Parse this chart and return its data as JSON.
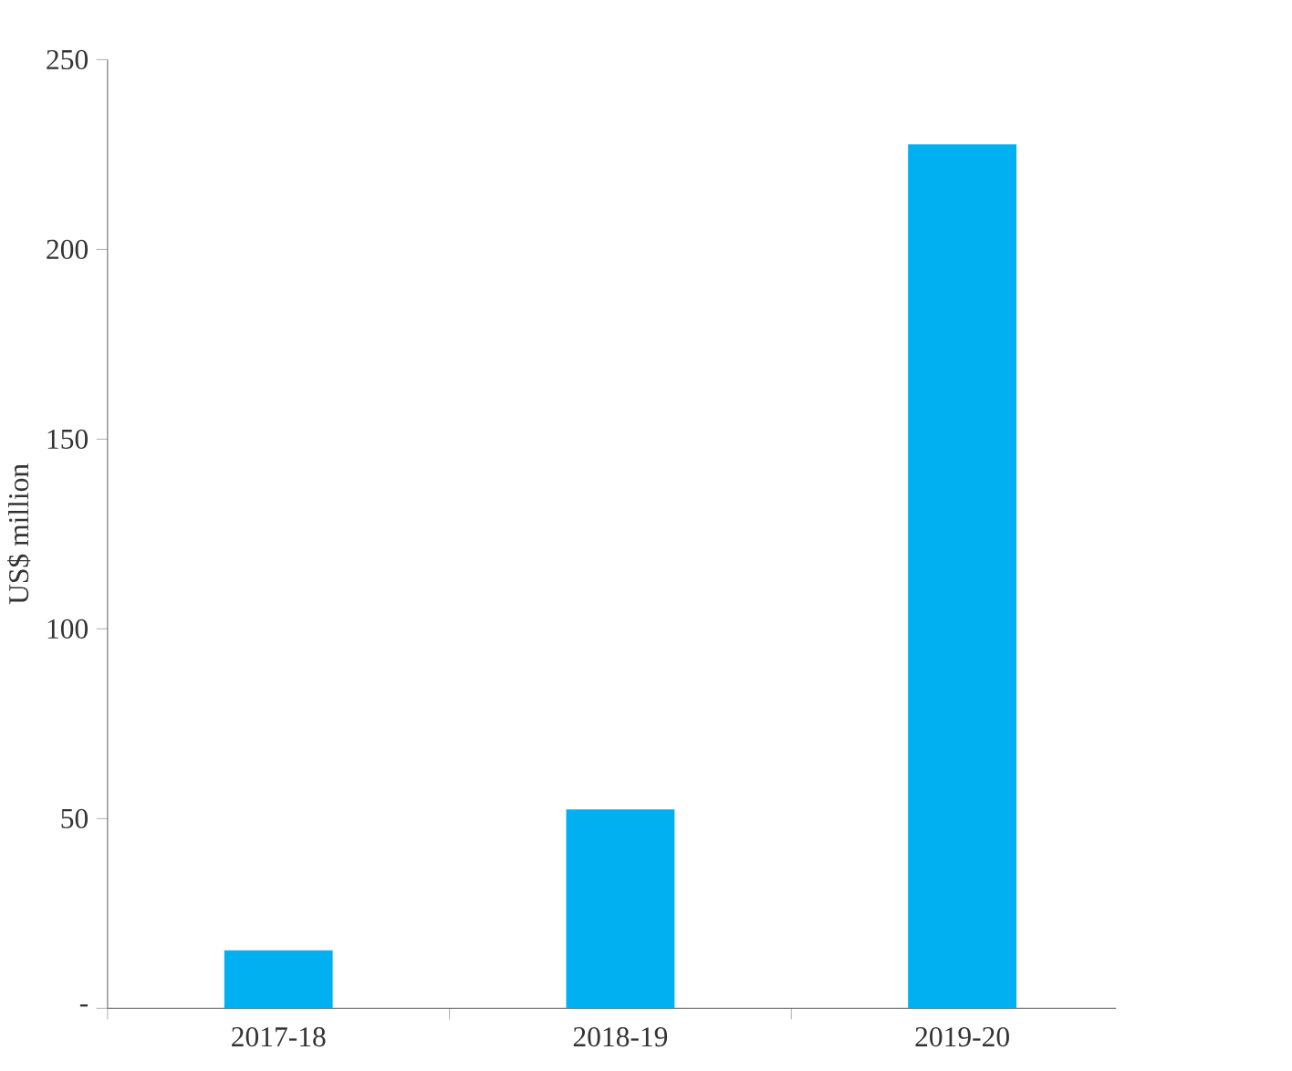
{
  "chart_data": {
    "type": "bar",
    "ylabel": "US$ million",
    "categories": [
      "2017-18",
      "2018-19",
      "2019-20"
    ],
    "values": [
      15.3,
      52.4,
      227.7
    ],
    "color": "#00b0f0",
    "ylim": [
      0,
      250
    ],
    "yticks": [
      {
        "value": 0,
        "label": "-"
      },
      50,
      100,
      150,
      200,
      250
    ],
    "grid": false
  }
}
